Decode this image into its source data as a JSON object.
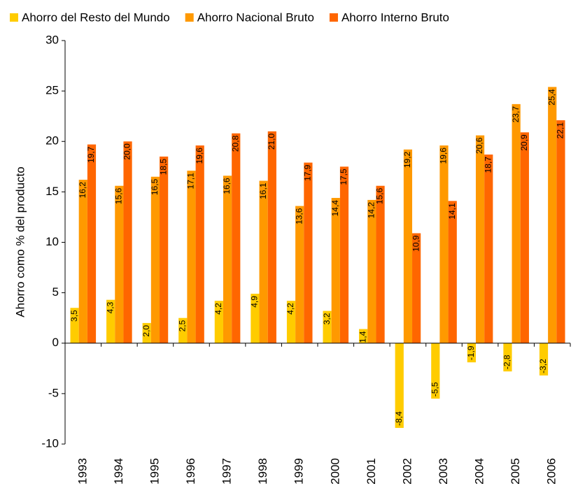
{
  "chart_data": {
    "type": "bar",
    "y_label": "Ahorro como % del producto",
    "categories": [
      "1993",
      "1994",
      "1995",
      "1996",
      "1997",
      "1998",
      "1999",
      "2000",
      "2001",
      "2002",
      "2003",
      "2004",
      "2005",
      "2006"
    ],
    "series": [
      {
        "name": "Ahorro del Resto del Mundo",
        "color": "#ffcc00",
        "values": [
          3.5,
          4.3,
          2.0,
          2.5,
          4.2,
          4.9,
          4.2,
          3.2,
          1.4,
          -8.4,
          -5.5,
          -1.9,
          -2.8,
          -3.2
        ],
        "value_labels": [
          "3,5",
          "4,3",
          "2,0",
          "2,5",
          "4,2",
          "4,9",
          "4,2",
          "3,2",
          "1,4",
          "-8,4",
          "-5,5",
          "-1,9",
          "-2,8",
          "-3,2"
        ]
      },
      {
        "name": "Ahorro Nacional Bruto",
        "color": "#ff9900",
        "values": [
          16.2,
          15.6,
          16.5,
          17.1,
          16.6,
          16.1,
          13.6,
          14.4,
          14.2,
          19.2,
          19.6,
          20.6,
          23.7,
          25.4
        ],
        "value_labels": [
          "16,2",
          "15,6",
          "16,5",
          "17,1",
          "16,6",
          "16,1",
          "13,6",
          "14,4",
          "14,2",
          "19,2",
          "19,6",
          "20,6",
          "23,7",
          "25,4"
        ]
      },
      {
        "name": "Ahorro Interno Bruto",
        "color": "#ff6600",
        "values": [
          19.7,
          20.0,
          18.5,
          19.6,
          20.8,
          21.0,
          17.9,
          17.5,
          15.6,
          10.9,
          14.1,
          18.7,
          20.9,
          22.1
        ],
        "value_labels": [
          "19,7",
          "20,0",
          "18,5",
          "19,6",
          "20,8",
          "21,0",
          "17,9",
          "17,5",
          "15,6",
          "10,9",
          "14,1",
          "18,7",
          "20,9",
          "22,1"
        ]
      }
    ],
    "ylim": [
      -10,
      30
    ],
    "yticks": [
      -10,
      -5,
      0,
      5,
      10,
      15,
      20,
      25,
      30
    ],
    "grid": false
  }
}
